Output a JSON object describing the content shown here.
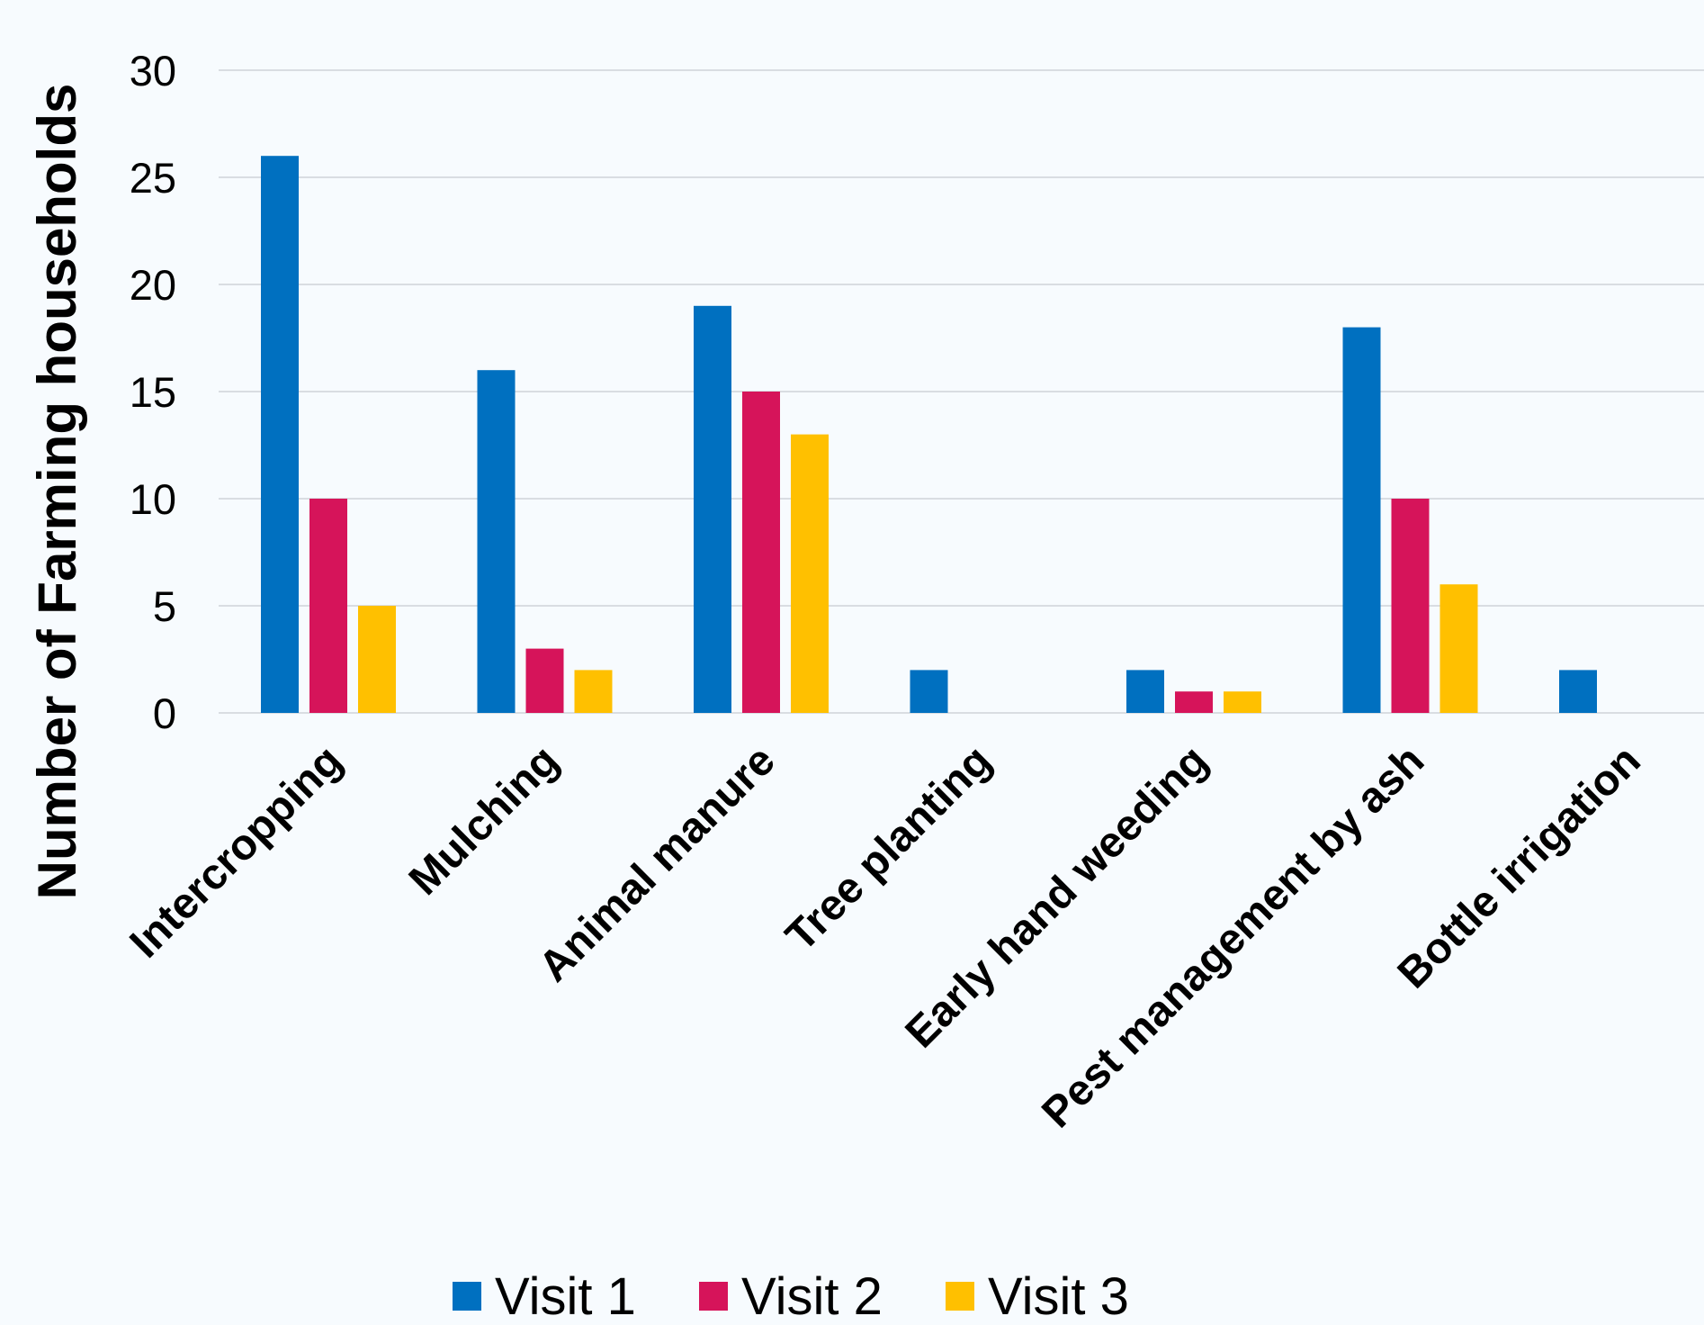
{
  "chart_data": {
    "type": "bar",
    "title": "",
    "xlabel": "",
    "ylabel": "Number of Farming households",
    "ylim": [
      0,
      30
    ],
    "yticks": [
      0,
      5,
      10,
      15,
      20,
      25,
      30
    ],
    "grid": true,
    "legend_position": "bottom",
    "categories": [
      "Intercropping",
      "Mulching",
      "Animal manure",
      "Tree planting",
      "Early hand weeding",
      "Pest management by ash",
      "Bottle irrigation"
    ],
    "series": [
      {
        "name": "Visit 1",
        "color": "#0070c0",
        "values": [
          26,
          16,
          19,
          2,
          2,
          18,
          2
        ]
      },
      {
        "name": "Visit 2",
        "color": "#d6145a",
        "values": [
          10,
          3,
          15,
          0,
          1,
          10,
          0
        ]
      },
      {
        "name": "Visit 3",
        "color": "#ffc000",
        "values": [
          5,
          2,
          13,
          0,
          1,
          6,
          0
        ]
      }
    ]
  }
}
